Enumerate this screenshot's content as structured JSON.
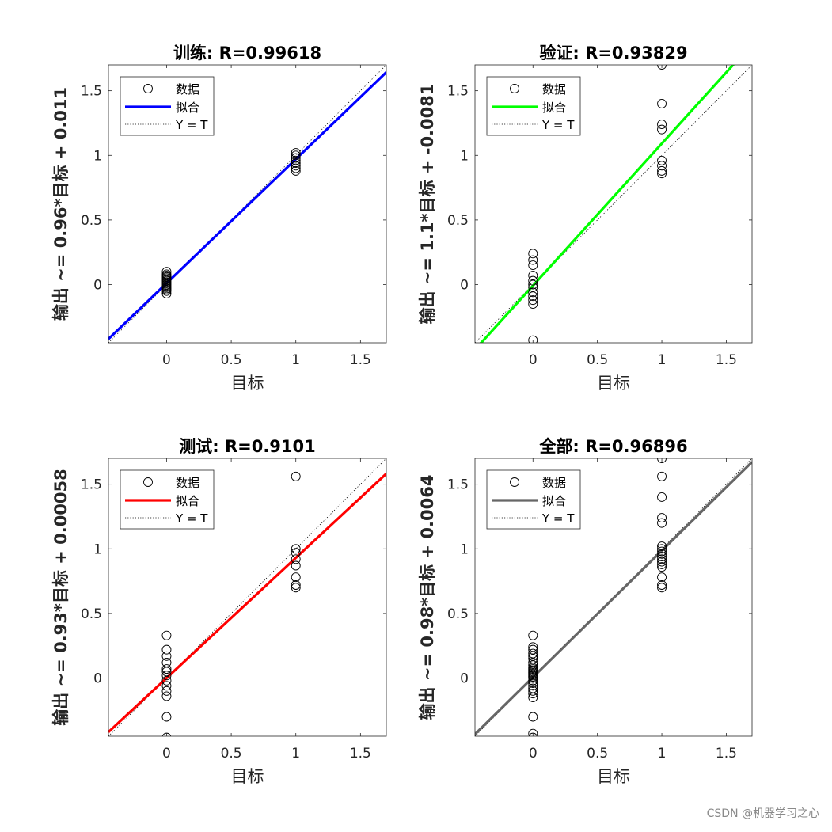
{
  "watermark": "CSDN @机器学习之心",
  "legend_labels": {
    "data": "数据",
    "fit": "拟合",
    "ident": "Y = T"
  },
  "chart_data": [
    {
      "type": "scatter",
      "title": "训练: R=0.99618",
      "xlabel": "目标",
      "ylabel": "输出 ~= 0.96*目标 + 0.011",
      "xlim": [
        -0.45,
        1.7
      ],
      "ylim": [
        -0.45,
        1.7
      ],
      "xticks": [
        0,
        0.5,
        1,
        1.5
      ],
      "yticks": [
        0,
        0.5,
        1,
        1.5
      ],
      "tick_labels": [
        "0",
        "0.5",
        "1",
        "1.5"
      ],
      "fit": {
        "slope": 0.96,
        "intercept": 0.011,
        "color": "#0000ff"
      },
      "legend": {
        "placement": "top-left"
      },
      "points": [
        [
          0,
          -0.07
        ],
        [
          0,
          -0.05
        ],
        [
          0,
          -0.04
        ],
        [
          0,
          -0.03
        ],
        [
          0,
          -0.02
        ],
        [
          0,
          -0.01
        ],
        [
          0,
          0.0
        ],
        [
          0,
          0.01
        ],
        [
          0,
          0.02
        ],
        [
          0,
          0.03
        ],
        [
          0,
          0.04
        ],
        [
          0,
          0.05
        ],
        [
          0,
          0.06
        ],
        [
          0,
          0.07
        ],
        [
          0,
          0.08
        ],
        [
          0,
          0.1
        ],
        [
          1,
          0.88
        ],
        [
          1,
          0.9
        ],
        [
          1,
          0.92
        ],
        [
          1,
          0.94
        ],
        [
          1,
          0.96
        ],
        [
          1,
          0.98
        ],
        [
          1,
          1.0
        ],
        [
          1,
          1.02
        ]
      ]
    },
    {
      "type": "scatter",
      "title": "验证: R=0.93829",
      "xlabel": "目标",
      "ylabel": "输出 ~= 1.1*目标 + -0.0081",
      "xlim": [
        -0.45,
        1.7
      ],
      "ylim": [
        -0.45,
        1.7
      ],
      "xticks": [
        0,
        0.5,
        1,
        1.5
      ],
      "yticks": [
        0,
        0.5,
        1,
        1.5
      ],
      "tick_labels": [
        "0",
        "0.5",
        "1",
        "1.5"
      ],
      "fit": {
        "slope": 1.1,
        "intercept": -0.0081,
        "color": "#00ff00"
      },
      "legend": {
        "placement": "top-left"
      },
      "points": [
        [
          0,
          -0.43
        ],
        [
          0,
          -0.15
        ],
        [
          0,
          -0.12
        ],
        [
          0,
          -0.09
        ],
        [
          0,
          -0.06
        ],
        [
          0,
          -0.02
        ],
        [
          0,
          0.0
        ],
        [
          0,
          0.03
        ],
        [
          0,
          0.07
        ],
        [
          0,
          0.15
        ],
        [
          0,
          0.19
        ],
        [
          0,
          0.24
        ],
        [
          1,
          0.86
        ],
        [
          1,
          0.88
        ],
        [
          1,
          0.92
        ],
        [
          1,
          0.96
        ],
        [
          1,
          1.2
        ],
        [
          1,
          1.24
        ],
        [
          1,
          1.4
        ],
        [
          1,
          1.7
        ]
      ]
    },
    {
      "type": "scatter",
      "title": "测试: R=0.9101",
      "xlabel": "目标",
      "ylabel": "输出 ~= 0.93*目标 + 0.00058",
      "xlim": [
        -0.45,
        1.7
      ],
      "ylim": [
        -0.45,
        1.7
      ],
      "xticks": [
        0,
        0.5,
        1,
        1.5
      ],
      "yticks": [
        0,
        0.5,
        1,
        1.5
      ],
      "tick_labels": [
        "0",
        "0.5",
        "1",
        "1.5"
      ],
      "fit": {
        "slope": 0.93,
        "intercept": 0.00058,
        "color": "#ff0000"
      },
      "legend": {
        "placement": "top-left"
      },
      "points": [
        [
          0,
          -0.46
        ],
        [
          0,
          -0.3
        ],
        [
          0,
          -0.14
        ],
        [
          0,
          -0.1
        ],
        [
          0,
          -0.06
        ],
        [
          0,
          -0.02
        ],
        [
          0,
          0.02
        ],
        [
          0,
          0.05
        ],
        [
          0,
          0.07
        ],
        [
          0,
          0.12
        ],
        [
          0,
          0.17
        ],
        [
          0,
          0.22
        ],
        [
          0,
          0.33
        ],
        [
          1,
          0.7
        ],
        [
          1,
          0.72
        ],
        [
          1,
          0.78
        ],
        [
          1,
          0.87
        ],
        [
          1,
          0.92
        ],
        [
          1,
          0.97
        ],
        [
          1,
          1.0
        ],
        [
          1,
          1.56
        ]
      ]
    },
    {
      "type": "scatter",
      "title": "全部: R=0.96896",
      "xlabel": "目标",
      "ylabel": "输出 ~= 0.98*目标 + 0.0064",
      "xlim": [
        -0.45,
        1.7
      ],
      "ylim": [
        -0.45,
        1.7
      ],
      "xticks": [
        0,
        0.5,
        1,
        1.5
      ],
      "yticks": [
        0,
        0.5,
        1,
        1.5
      ],
      "tick_labels": [
        "0",
        "0.5",
        "1",
        "1.5"
      ],
      "fit": {
        "slope": 0.98,
        "intercept": 0.0064,
        "color": "#666666"
      },
      "legend": {
        "placement": "top-left"
      },
      "points": [
        [
          0,
          -0.46
        ],
        [
          0,
          -0.43
        ],
        [
          0,
          -0.3
        ],
        [
          0,
          -0.15
        ],
        [
          0,
          -0.12
        ],
        [
          0,
          -0.1
        ],
        [
          0,
          -0.08
        ],
        [
          0,
          -0.06
        ],
        [
          0,
          -0.04
        ],
        [
          0,
          -0.02
        ],
        [
          0,
          0.0
        ],
        [
          0,
          0.01
        ],
        [
          0,
          0.02
        ],
        [
          0,
          0.03
        ],
        [
          0,
          0.04
        ],
        [
          0,
          0.05
        ],
        [
          0,
          0.06
        ],
        [
          0,
          0.07
        ],
        [
          0,
          0.08
        ],
        [
          0,
          0.1
        ],
        [
          0,
          0.12
        ],
        [
          0,
          0.15
        ],
        [
          0,
          0.17
        ],
        [
          0,
          0.19
        ],
        [
          0,
          0.22
        ],
        [
          0,
          0.24
        ],
        [
          0,
          0.33
        ],
        [
          1,
          0.7
        ],
        [
          1,
          0.72
        ],
        [
          1,
          0.78
        ],
        [
          1,
          0.86
        ],
        [
          1,
          0.88
        ],
        [
          1,
          0.9
        ],
        [
          1,
          0.92
        ],
        [
          1,
          0.94
        ],
        [
          1,
          0.96
        ],
        [
          1,
          0.98
        ],
        [
          1,
          1.0
        ],
        [
          1,
          1.02
        ],
        [
          1,
          1.2
        ],
        [
          1,
          1.24
        ],
        [
          1,
          1.4
        ],
        [
          1,
          1.56
        ],
        [
          1,
          1.7
        ]
      ]
    }
  ]
}
